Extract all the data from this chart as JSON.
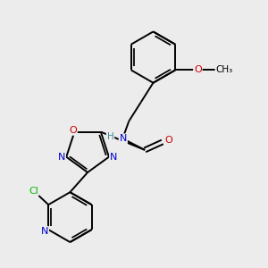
{
  "bg_color": "#ececec",
  "bond_color": "#000000",
  "atom_colors": {
    "N": "#0000cc",
    "O": "#cc0000",
    "Cl": "#00bb00",
    "C": "#000000",
    "H": "#448899"
  },
  "font_size": 8.0,
  "line_width": 1.4
}
